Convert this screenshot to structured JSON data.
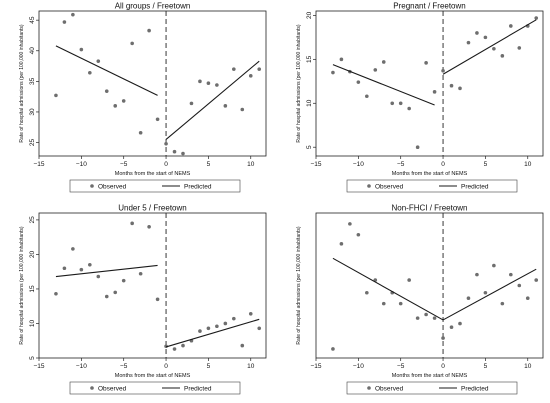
{
  "chart_data": [
    {
      "type": "scatter",
      "title": "All groups / Freetown",
      "xlabel": "Months from the start of NEMS",
      "ylabel": "Rate of hospital admissions (per 100,000 inhabitants)",
      "xlim": [
        -15,
        11.8
      ],
      "ylim": [
        22.8,
        46.5
      ],
      "xticks": [
        -15,
        -10,
        -5,
        0,
        5,
        10
      ],
      "yticks": [
        25,
        30,
        35,
        40,
        45
      ],
      "grid": false,
      "legend": {
        "position": "bottom",
        "entries": [
          "Observed",
          "Predicted"
        ]
      },
      "series": [
        {
          "name": "Observed",
          "kind": "points",
          "x": [
            -13,
            -12,
            -11,
            -10,
            -9,
            -8,
            -7,
            -6,
            -5,
            -4,
            -3,
            -2,
            -1,
            0,
            1,
            2,
            3,
            4,
            5,
            6,
            7,
            8,
            9,
            10,
            11
          ],
          "y": [
            32.7,
            44.7,
            45.9,
            40.2,
            36.4,
            38.3,
            33.4,
            31.0,
            31.8,
            41.2,
            26.6,
            43.3,
            28.8,
            24.8,
            23.5,
            23.2,
            31.4,
            35.0,
            34.7,
            34.4,
            31.0,
            37.0,
            30.4,
            35.9,
            37.0
          ]
        },
        {
          "name": "Predicted",
          "kind": "line",
          "segments": [
            [
              [
                -13,
                40.8
              ],
              [
                -1,
                32.7
              ]
            ],
            [
              [
                0,
                25.5
              ],
              [
                11,
                38.3
              ]
            ]
          ]
        }
      ],
      "annotations": [
        {
          "type": "dashed-vline",
          "x": 0
        }
      ]
    },
    {
      "type": "scatter",
      "title": "Pregnant / Freetown",
      "xlabel": "Months from the start of NEMS",
      "ylabel": "Rate of hospital admissions (per 100,000 inhabitants)",
      "xlim": [
        -15,
        11.8
      ],
      "ylim": [
        4,
        20.5
      ],
      "xticks": [
        -15,
        -10,
        -5,
        0,
        5,
        10
      ],
      "yticks": [
        5,
        10,
        15,
        20
      ],
      "grid": false,
      "legend": {
        "position": "bottom",
        "entries": [
          "Observed",
          "Predicted"
        ]
      },
      "series": [
        {
          "name": "Observed",
          "kind": "points",
          "x": [
            -13,
            -12,
            -11,
            -10,
            -9,
            -8,
            -7,
            -6,
            -5,
            -4,
            -3,
            -2,
            -1,
            0,
            1,
            2,
            3,
            4,
            5,
            6,
            7,
            8,
            9,
            10,
            11
          ],
          "y": [
            13.5,
            15.0,
            13.6,
            12.4,
            10.8,
            13.8,
            14.7,
            10.0,
            10.0,
            9.4,
            5.0,
            14.6,
            11.3,
            13.7,
            12.0,
            11.7,
            16.9,
            18.0,
            17.5,
            16.2,
            15.4,
            18.8,
            16.3,
            18.8,
            19.7
          ]
        },
        {
          "name": "Predicted",
          "kind": "line",
          "segments": [
            [
              [
                -13,
                14.4
              ],
              [
                -1,
                9.8
              ]
            ],
            [
              [
                0,
                13.3
              ],
              [
                11,
                19.5
              ]
            ]
          ]
        }
      ],
      "annotations": [
        {
          "type": "dashed-vline",
          "x": 0
        }
      ]
    },
    {
      "type": "scatter",
      "title": "Under 5 / Freetown",
      "xlabel": "Months from the start of NEMS",
      "ylabel": "Rate of hospital admissions (per 100,000 inhabitants)",
      "xlim": [
        -15,
        11.8
      ],
      "ylim": [
        5,
        26
      ],
      "xticks": [
        -15,
        -10,
        -5,
        0,
        5,
        10
      ],
      "yticks": [
        5,
        10,
        15,
        20,
        25
      ],
      "grid": false,
      "legend": {
        "position": "bottom",
        "entries": [
          "Observed",
          "Predicted"
        ]
      },
      "series": [
        {
          "name": "Observed",
          "kind": "points",
          "x": [
            -13,
            -12,
            -11,
            -10,
            -9,
            -8,
            -7,
            -6,
            -5,
            -4,
            -3,
            -2,
            -1,
            0,
            1,
            2,
            3,
            4,
            5,
            6,
            7,
            8,
            9,
            10,
            11
          ],
          "y": [
            14.3,
            18.0,
            20.8,
            17.8,
            18.5,
            16.8,
            13.9,
            14.5,
            16.2,
            24.5,
            17.2,
            24.0,
            13.5,
            6.7,
            6.3,
            6.8,
            7.5,
            8.9,
            9.3,
            9.6,
            10.0,
            10.7,
            6.8,
            11.4,
            9.3
          ]
        },
        {
          "name": "Predicted",
          "kind": "line",
          "segments": [
            [
              [
                -13,
                16.8
              ],
              [
                -1,
                18.4
              ]
            ],
            [
              [
                0,
                6.6
              ],
              [
                11,
                10.6
              ]
            ]
          ]
        }
      ],
      "annotations": [
        {
          "type": "dashed-vline",
          "x": 0
        }
      ]
    },
    {
      "type": "scatter",
      "title": "Non-FHCI / Freetown",
      "xlabel": "Months from the start of NEMS",
      "ylabel": "Rate of hospital admissions (per 100,000 inhabitants)",
      "xlim": [
        -15,
        11.8
      ],
      "ylim": [
        2,
        10
      ],
      "xticks": [
        -15,
        -10,
        -5,
        0,
        5,
        10
      ],
      "yticks": [],
      "grid": false,
      "legend": {
        "position": "bottom",
        "entries": [
          "Observed",
          "Predicted"
        ]
      },
      "series": [
        {
          "name": "Observed",
          "kind": "points",
          "x": [
            -13,
            -12,
            -11,
            -10,
            -9,
            -8,
            -7,
            -6,
            -5,
            -4,
            -3,
            -2,
            -1,
            0,
            1,
            2,
            3,
            4,
            5,
            6,
            7,
            8,
            9,
            10,
            11
          ],
          "y": [
            2.5,
            8.3,
            9.4,
            8.8,
            5.6,
            6.3,
            5.0,
            5.6,
            5.0,
            6.3,
            4.2,
            4.4,
            4.2,
            3.1,
            3.7,
            3.9,
            5.3,
            6.6,
            5.6,
            7.1,
            5.0,
            6.6,
            6.0,
            5.3,
            6.3
          ]
        },
        {
          "name": "Predicted",
          "kind": "line",
          "segments": [
            [
              [
                -13,
                7.5
              ],
              [
                0,
                4.1
              ]
            ],
            [
              [
                0,
                4.1
              ],
              [
                11,
                6.9
              ]
            ]
          ]
        }
      ],
      "annotations": [
        {
          "type": "dashed-vline",
          "x": 0
        }
      ]
    }
  ]
}
